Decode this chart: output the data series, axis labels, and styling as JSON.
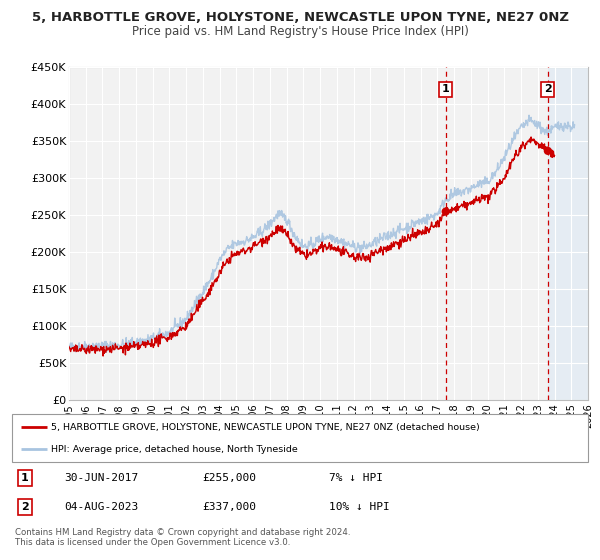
{
  "title": "5, HARBOTTLE GROVE, HOLYSTONE, NEWCASTLE UPON TYNE, NE27 0NZ",
  "subtitle": "Price paid vs. HM Land Registry's House Price Index (HPI)",
  "xlim": [
    1995,
    2026
  ],
  "ylim": [
    0,
    450000
  ],
  "yticks": [
    0,
    50000,
    100000,
    150000,
    200000,
    250000,
    300000,
    350000,
    400000,
    450000
  ],
  "ytick_labels": [
    "£0",
    "£50K",
    "£100K",
    "£150K",
    "£200K",
    "£250K",
    "£300K",
    "£350K",
    "£400K",
    "£450K"
  ],
  "xticks": [
    1995,
    1996,
    1997,
    1998,
    1999,
    2000,
    2001,
    2002,
    2003,
    2004,
    2005,
    2006,
    2007,
    2008,
    2009,
    2010,
    2011,
    2012,
    2013,
    2014,
    2015,
    2016,
    2017,
    2018,
    2019,
    2020,
    2021,
    2022,
    2023,
    2024,
    2025,
    2026
  ],
  "hpi_color": "#a8c4e0",
  "sale_color": "#cc0000",
  "marker1_date": 2017.5,
  "marker1_price": 255000,
  "marker2_date": 2023.6,
  "marker2_price": 337000,
  "vline_color": "#cc0000",
  "plot_bg": "#f2f2f2",
  "grid_color": "#ffffff",
  "shaded_start": 2023.6,
  "legend_line1": "5, HARBOTTLE GROVE, HOLYSTONE, NEWCASTLE UPON TYNE, NE27 0NZ (detached house)",
  "legend_line2": "HPI: Average price, detached house, North Tyneside",
  "table_row1_num": "1",
  "table_row1_date": "30-JUN-2017",
  "table_row1_price": "£255,000",
  "table_row1_pct": "7% ↓ HPI",
  "table_row2_num": "2",
  "table_row2_date": "04-AUG-2023",
  "table_row2_price": "£337,000",
  "table_row2_pct": "10% ↓ HPI",
  "footnote1": "Contains HM Land Registry data © Crown copyright and database right 2024.",
  "footnote2": "This data is licensed under the Open Government Licence v3.0."
}
